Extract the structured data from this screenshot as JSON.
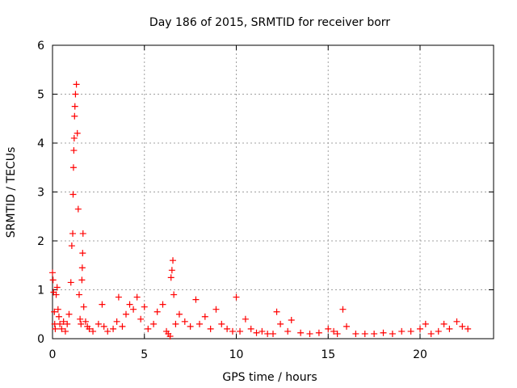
{
  "chart_data": {
    "type": "scatter",
    "title": "Day 186 of 2015, SRMTID for receiver borr",
    "xlabel": "GPS time / hours",
    "ylabel": "SRMTID / TECUs",
    "xlim": [
      0,
      24
    ],
    "ylim": [
      0,
      6
    ],
    "xticks": [
      0,
      5,
      10,
      15,
      20
    ],
    "yticks": [
      0,
      1,
      2,
      3,
      4,
      5,
      6
    ],
    "grid": true,
    "marker": "+",
    "colors": {
      "series": "#ff0000",
      "grid": "#a0a0a0",
      "axis": "#000000"
    },
    "series": [
      {
        "name": "SRMTID",
        "x": [
          0.0,
          0.03,
          0.06,
          0.1,
          0.12,
          0.15,
          0.2,
          0.25,
          0.3,
          0.35,
          0.4,
          0.5,
          0.6,
          0.7,
          0.8,
          0.9,
          1.0,
          1.05,
          1.1,
          1.12,
          1.14,
          1.16,
          1.18,
          1.2,
          1.22,
          1.25,
          1.3,
          1.35,
          1.4,
          1.45,
          1.5,
          1.55,
          1.6,
          1.62,
          1.64,
          1.66,
          1.7,
          1.8,
          1.9,
          2.0,
          2.2,
          2.5,
          2.7,
          2.8,
          3.0,
          3.3,
          3.5,
          3.6,
          3.8,
          4.0,
          4.2,
          4.4,
          4.6,
          4.8,
          5.0,
          5.2,
          5.5,
          5.7,
          6.0,
          6.2,
          6.3,
          6.4,
          6.45,
          6.5,
          6.55,
          6.6,
          6.7,
          6.9,
          7.2,
          7.5,
          7.8,
          8.0,
          8.3,
          8.6,
          8.9,
          9.2,
          9.5,
          9.8,
          10.0,
          10.2,
          10.5,
          10.8,
          11.1,
          11.4,
          11.7,
          12.0,
          12.2,
          12.4,
          12.8,
          13.0,
          13.5,
          14.0,
          14.5,
          15.0,
          15.3,
          15.5,
          15.8,
          16.0,
          16.5,
          17.0,
          17.5,
          18.0,
          18.5,
          19.0,
          19.5,
          20.0,
          20.3,
          20.6,
          21.0,
          21.3,
          21.6,
          22.0,
          22.3,
          22.6
        ],
        "y": [
          1.35,
          1.2,
          0.95,
          0.55,
          0.3,
          0.2,
          0.9,
          1.05,
          0.6,
          0.45,
          0.3,
          0.2,
          0.35,
          0.15,
          0.3,
          0.5,
          1.15,
          1.9,
          2.15,
          2.95,
          3.5,
          3.85,
          4.1,
          4.55,
          4.75,
          5.0,
          5.2,
          4.2,
          2.65,
          0.9,
          0.4,
          0.3,
          1.2,
          1.45,
          1.75,
          2.15,
          0.65,
          0.35,
          0.25,
          0.2,
          0.15,
          0.3,
          0.7,
          0.25,
          0.15,
          0.2,
          0.35,
          0.85,
          0.25,
          0.5,
          0.7,
          0.6,
          0.85,
          0.4,
          0.65,
          0.2,
          0.3,
          0.55,
          0.7,
          0.15,
          0.1,
          0.05,
          1.25,
          1.4,
          1.6,
          0.9,
          0.3,
          0.5,
          0.35,
          0.25,
          0.8,
          0.3,
          0.45,
          0.2,
          0.6,
          0.3,
          0.2,
          0.15,
          0.85,
          0.15,
          0.4,
          0.2,
          0.12,
          0.15,
          0.1,
          0.1,
          0.55,
          0.3,
          0.15,
          0.38,
          0.12,
          0.1,
          0.12,
          0.2,
          0.15,
          0.1,
          0.6,
          0.25,
          0.1,
          0.1,
          0.1,
          0.12,
          0.1,
          0.15,
          0.15,
          0.2,
          0.3,
          0.1,
          0.15,
          0.3,
          0.2,
          0.35,
          0.25,
          0.2
        ]
      }
    ]
  }
}
